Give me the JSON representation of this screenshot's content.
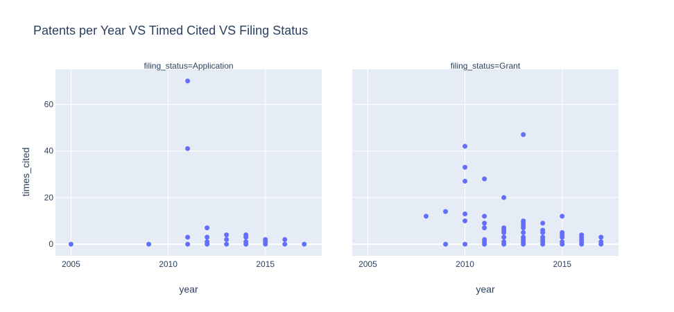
{
  "chart_data": {
    "type": "scatter",
    "title": "Patents per Year VS Timed Cited VS Filing Status",
    "xlabel": "year",
    "ylabel": "times_cited",
    "xlim": [
      2004.2,
      2017.9
    ],
    "ylim": [
      -5,
      75
    ],
    "xticks": [
      2005,
      2010,
      2015
    ],
    "yticks": [
      0,
      20,
      40,
      60
    ],
    "grid": true,
    "marker_color": "#636efa",
    "plot_bg": "#e5ecf6",
    "facets": [
      {
        "label": "filing_status=Application",
        "points": [
          {
            "x": 2005,
            "y": 0
          },
          {
            "x": 2009,
            "y": 0
          },
          {
            "x": 2011,
            "y": 70
          },
          {
            "x": 2011,
            "y": 41
          },
          {
            "x": 2011,
            "y": 3
          },
          {
            "x": 2011,
            "y": 0
          },
          {
            "x": 2012,
            "y": 7
          },
          {
            "x": 2012,
            "y": 3
          },
          {
            "x": 2012,
            "y": 1
          },
          {
            "x": 2012,
            "y": 0
          },
          {
            "x": 2013,
            "y": 4
          },
          {
            "x": 2013,
            "y": 2
          },
          {
            "x": 2013,
            "y": 0
          },
          {
            "x": 2014,
            "y": 4
          },
          {
            "x": 2014,
            "y": 3
          },
          {
            "x": 2014,
            "y": 1
          },
          {
            "x": 2014,
            "y": 0
          },
          {
            "x": 2015,
            "y": 2
          },
          {
            "x": 2015,
            "y": 1
          },
          {
            "x": 2015,
            "y": 0
          },
          {
            "x": 2016,
            "y": 2
          },
          {
            "x": 2016,
            "y": 0
          },
          {
            "x": 2017,
            "y": 0
          }
        ]
      },
      {
        "label": "filing_status=Grant",
        "points": [
          {
            "x": 2008,
            "y": 12
          },
          {
            "x": 2009,
            "y": 14
          },
          {
            "x": 2009,
            "y": 0
          },
          {
            "x": 2010,
            "y": 42
          },
          {
            "x": 2010,
            "y": 33
          },
          {
            "x": 2010,
            "y": 27
          },
          {
            "x": 2010,
            "y": 13
          },
          {
            "x": 2010,
            "y": 10
          },
          {
            "x": 2010,
            "y": 0
          },
          {
            "x": 2011,
            "y": 28
          },
          {
            "x": 2011,
            "y": 12
          },
          {
            "x": 2011,
            "y": 9
          },
          {
            "x": 2011,
            "y": 7
          },
          {
            "x": 2011,
            "y": 2
          },
          {
            "x": 2011,
            "y": 1
          },
          {
            "x": 2011,
            "y": 0
          },
          {
            "x": 2012,
            "y": 20
          },
          {
            "x": 2012,
            "y": 7
          },
          {
            "x": 2012,
            "y": 6
          },
          {
            "x": 2012,
            "y": 5
          },
          {
            "x": 2012,
            "y": 3
          },
          {
            "x": 2012,
            "y": 1
          },
          {
            "x": 2012,
            "y": 0
          },
          {
            "x": 2013,
            "y": 47
          },
          {
            "x": 2013,
            "y": 10
          },
          {
            "x": 2013,
            "y": 9
          },
          {
            "x": 2013,
            "y": 8
          },
          {
            "x": 2013,
            "y": 7
          },
          {
            "x": 2013,
            "y": 5
          },
          {
            "x": 2013,
            "y": 3
          },
          {
            "x": 2013,
            "y": 2
          },
          {
            "x": 2013,
            "y": 1
          },
          {
            "x": 2013,
            "y": 0
          },
          {
            "x": 2014,
            "y": 9
          },
          {
            "x": 2014,
            "y": 6
          },
          {
            "x": 2014,
            "y": 5
          },
          {
            "x": 2014,
            "y": 3
          },
          {
            "x": 2014,
            "y": 2
          },
          {
            "x": 2014,
            "y": 1
          },
          {
            "x": 2014,
            "y": 0
          },
          {
            "x": 2015,
            "y": 12
          },
          {
            "x": 2015,
            "y": 5
          },
          {
            "x": 2015,
            "y": 4
          },
          {
            "x": 2015,
            "y": 3
          },
          {
            "x": 2015,
            "y": 1
          },
          {
            "x": 2015,
            "y": 0
          },
          {
            "x": 2016,
            "y": 4
          },
          {
            "x": 2016,
            "y": 3
          },
          {
            "x": 2016,
            "y": 2
          },
          {
            "x": 2016,
            "y": 1
          },
          {
            "x": 2016,
            "y": 0
          },
          {
            "x": 2017,
            "y": 3
          },
          {
            "x": 2017,
            "y": 1
          },
          {
            "x": 2017,
            "y": 0
          }
        ]
      }
    ]
  }
}
